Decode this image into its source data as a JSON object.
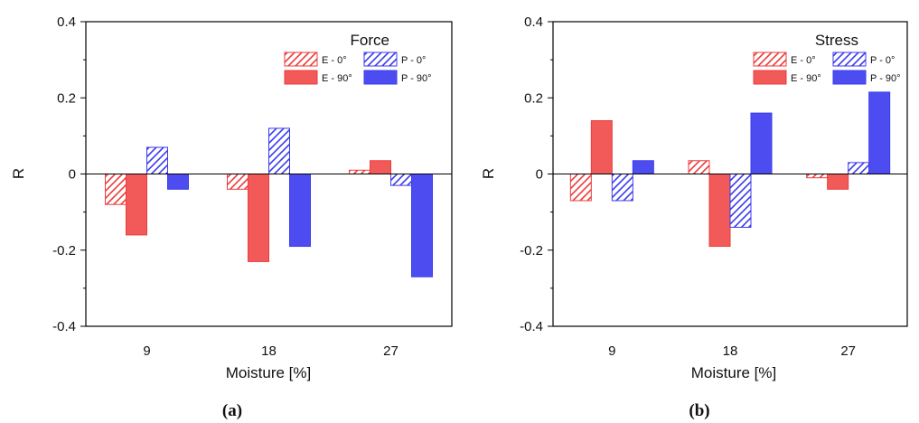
{
  "colors": {
    "e_color": "#ee3b3b",
    "p_color": "#3b3bee",
    "e_fill": "#f25a5a",
    "p_fill": "#4c4cf0",
    "axis": "#000000"
  },
  "chart_data": [
    {
      "type": "bar",
      "caption": "(a)",
      "title": "Force",
      "xlabel": "Moisture [%]",
      "ylabel": "R",
      "ylim": [
        -0.4,
        0.4
      ],
      "yticks": [
        "-0.4",
        "-0.2",
        "0",
        "0.2",
        "0.4"
      ],
      "categories": [
        "9",
        "18",
        "27"
      ],
      "grid": false,
      "legend_position": "top-right",
      "series": [
        {
          "name": "E - 0°",
          "pattern": "hatched",
          "color": "#ee3b3b",
          "values": [
            -0.08,
            -0.04,
            0.01
          ]
        },
        {
          "name": "E - 90°",
          "pattern": "solid",
          "color": "#ee3b3b",
          "values": [
            -0.16,
            -0.23,
            0.035
          ]
        },
        {
          "name": "P - 0°",
          "pattern": "hatched",
          "color": "#3b3bee",
          "values": [
            0.07,
            0.12,
            -0.03
          ]
        },
        {
          "name": "P - 90°",
          "pattern": "solid",
          "color": "#3b3bee",
          "values": [
            -0.04,
            -0.19,
            -0.27
          ]
        }
      ]
    },
    {
      "type": "bar",
      "caption": "(b)",
      "title": "Stress",
      "xlabel": "Moisture [%]",
      "ylabel": "R",
      "ylim": [
        -0.4,
        0.4
      ],
      "yticks": [
        "-0.4",
        "-0.2",
        "0",
        "0.2",
        "0.4"
      ],
      "categories": [
        "9",
        "18",
        "27"
      ],
      "grid": false,
      "legend_position": "top-right",
      "series": [
        {
          "name": "E - 0°",
          "pattern": "hatched",
          "color": "#ee3b3b",
          "values": [
            -0.07,
            0.035,
            -0.01
          ]
        },
        {
          "name": "E - 90°",
          "pattern": "solid",
          "color": "#ee3b3b",
          "values": [
            0.14,
            -0.19,
            -0.04
          ]
        },
        {
          "name": "P - 0°",
          "pattern": "hatched",
          "color": "#3b3bee",
          "values": [
            -0.07,
            -0.14,
            0.03
          ]
        },
        {
          "name": "P - 90°",
          "pattern": "solid",
          "color": "#3b3bee",
          "values": [
            0.035,
            0.16,
            0.215
          ]
        }
      ]
    }
  ]
}
